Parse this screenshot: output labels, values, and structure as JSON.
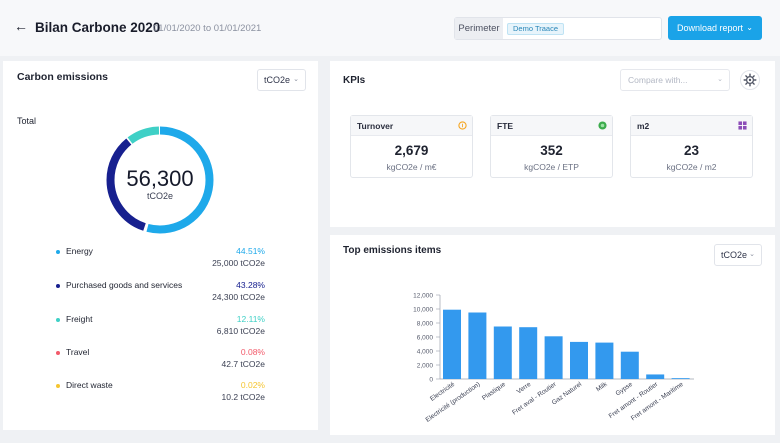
{
  "header": {
    "back_icon": "arrow-left-icon",
    "title": "Bilan Carbone 2020",
    "dates": "01/01/2020 to 01/01/2021",
    "perimeter_label": "Perimeter",
    "perimeter_value": "Demo Traace",
    "download_label": "Download report"
  },
  "carbon": {
    "title": "Carbon emissions",
    "unit_select": "tCO2e",
    "total_label": "Total",
    "total_value": "56,300",
    "total_unit": "tCO2e",
    "legend": [
      {
        "name": "Energy",
        "pct": "44.51%",
        "value": "25,000 tCO2e",
        "color": "#1ea9ea"
      },
      {
        "name": "Purchased goods and services",
        "pct": "43.28%",
        "value": "24,300 tCO2e",
        "color": "#17208f"
      },
      {
        "name": "Freight",
        "pct": "12.11%",
        "value": "6,810 tCO2e",
        "color": "#3fd0c6"
      },
      {
        "name": "Travel",
        "pct": "0.08%",
        "value": "42.7 tCO2e",
        "color": "#f25a6a"
      },
      {
        "name": "Direct waste",
        "pct": "0.02%",
        "value": "10.2 tCO2e",
        "color": "#f5c531"
      }
    ]
  },
  "kpis": {
    "title": "KPIs",
    "compare_placeholder": "Compare with...",
    "gear_icon": "gear-icon",
    "items": [
      {
        "name": "Turnover",
        "value": "2,679",
        "unit": "kgCO2e / m€",
        "icon": "coin-icon",
        "icon_color": "#f5a623"
      },
      {
        "name": "FTE",
        "value": "352",
        "unit": "kgCO2e / ETP",
        "icon": "globe-icon",
        "icon_color": "#3bab4c"
      },
      {
        "name": "m2",
        "value": "23",
        "unit": "kgCO2e / m2",
        "icon": "grid-icon",
        "icon_color": "#8c4db8"
      }
    ]
  },
  "top_items": {
    "title": "Top emissions items",
    "unit_select": "tCO2e"
  },
  "chart_data": {
    "type": "bar",
    "title": "Top emissions items",
    "categories": [
      "Electricité",
      "Electricité (production)",
      "Plastique",
      "Verre",
      "Fret aval - Routier",
      "Gaz Naturel",
      "Milk",
      "Gypse",
      "Fret amont - Routier",
      "Fret amont - Maritime"
    ],
    "values": [
      9900,
      9500,
      7500,
      7400,
      6100,
      5300,
      5200,
      3900,
      650,
      120
    ],
    "ylim": [
      0,
      12000
    ],
    "yticks": [
      0,
      2000,
      4000,
      6000,
      8000,
      10000,
      12000
    ],
    "ytick_labels": [
      "0",
      "2,000",
      "4,000",
      "6,000",
      "8,000",
      "10,000",
      "12,000"
    ],
    "xlabel": "",
    "ylabel": "",
    "bar_color": "#3399ee",
    "grid": false
  }
}
